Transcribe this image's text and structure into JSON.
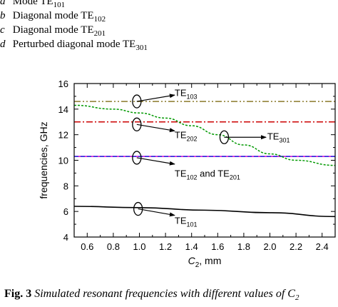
{
  "legend": [
    {
      "key": "a",
      "text": "Mode TE",
      "sub": "101"
    },
    {
      "key": "b",
      "text": "Diagonal mode TE",
      "sub": "102"
    },
    {
      "key": "c",
      "text": "Diagonal mode TE",
      "sub": "201"
    },
    {
      "key": "d",
      "text": "Perturbed diagonal mode TE",
      "sub": "301"
    }
  ],
  "caption": {
    "number": "Fig. 3",
    "text": "Simulated resonant frequencies with different values of C",
    "sub": "2"
  },
  "chart_data": {
    "type": "line",
    "xlabel": {
      "main": "C",
      "sub": "2",
      "unit": ", mm"
    },
    "ylabel": "frequencies, GHz",
    "xlim": [
      0.5,
      2.5
    ],
    "ylim": [
      4,
      16
    ],
    "xticks": [
      "0.6",
      "0.8",
      "1.0",
      "1.2",
      "1.4",
      "1.6",
      "1.8",
      "2.0",
      "2.2",
      "2.4"
    ],
    "yticks": [
      "4",
      "6",
      "8",
      "10",
      "12",
      "14",
      "16"
    ],
    "grid": false,
    "series": [
      {
        "id": "te101",
        "color": "#000000",
        "dash": "solid",
        "x": [
          0.5,
          1.0,
          1.5,
          2.0,
          2.5
        ],
        "y": [
          6.4,
          6.3,
          6.1,
          5.9,
          5.6
        ]
      },
      {
        "id": "te102-201-magenta",
        "color": "#cc00cc",
        "dash": "solid",
        "x": [
          0.5,
          2.5
        ],
        "y": [
          10.3,
          10.3
        ]
      },
      {
        "id": "te102-201-blue",
        "color": "#2222dd",
        "dash": "dashed",
        "x": [
          0.5,
          2.5
        ],
        "y": [
          10.3,
          10.3
        ]
      },
      {
        "id": "te202",
        "color": "#cc0000",
        "dash": "dashdot",
        "x": [
          0.5,
          2.5
        ],
        "y": [
          13.0,
          13.0
        ]
      },
      {
        "id": "te103",
        "color": "#8b7a2a",
        "dash": "dashdotdot",
        "x": [
          0.5,
          2.5
        ],
        "y": [
          14.6,
          14.6
        ]
      },
      {
        "id": "te301",
        "color": "#009900",
        "dash": "dotted",
        "x": [
          0.5,
          0.8,
          1.0,
          1.2,
          1.4,
          1.6,
          1.8,
          2.0,
          2.2,
          2.5
        ],
        "y": [
          14.3,
          14.0,
          13.7,
          13.3,
          12.7,
          12.0,
          11.2,
          10.5,
          10.0,
          9.6
        ]
      }
    ],
    "annotations": [
      {
        "id": "te103",
        "main": "TE",
        "sub": "103",
        "suffix": "",
        "ellipse": [
          0.98,
          14.6
        ],
        "arrow_to": [
          1.27,
          15.1
        ],
        "label": [
          1.27,
          15.3
        ]
      },
      {
        "id": "te202",
        "main": "TE",
        "sub": "202",
        "suffix": "",
        "ellipse": [
          0.98,
          12.8
        ],
        "arrow_to": [
          1.27,
          12.3
        ],
        "label": [
          1.27,
          12.0
        ]
      },
      {
        "id": "te301",
        "main": "TE",
        "sub": "301",
        "suffix": "",
        "ellipse": [
          1.65,
          11.8
        ],
        "arrow_to": [
          1.97,
          11.8
        ],
        "label": [
          1.98,
          11.9
        ]
      },
      {
        "id": "te102-201",
        "main": "TE",
        "sub": "102",
        "suffix": " and TE",
        "sub2": "201",
        "ellipse": [
          0.98,
          10.2
        ],
        "arrow_to": [
          1.27,
          9.7
        ],
        "label": [
          1.27,
          9.0
        ]
      },
      {
        "id": "te101",
        "main": "TE",
        "sub": "101",
        "suffix": "",
        "ellipse": [
          0.99,
          6.2
        ],
        "arrow_to": [
          1.27,
          5.7
        ],
        "label": [
          1.27,
          5.3
        ]
      }
    ]
  }
}
